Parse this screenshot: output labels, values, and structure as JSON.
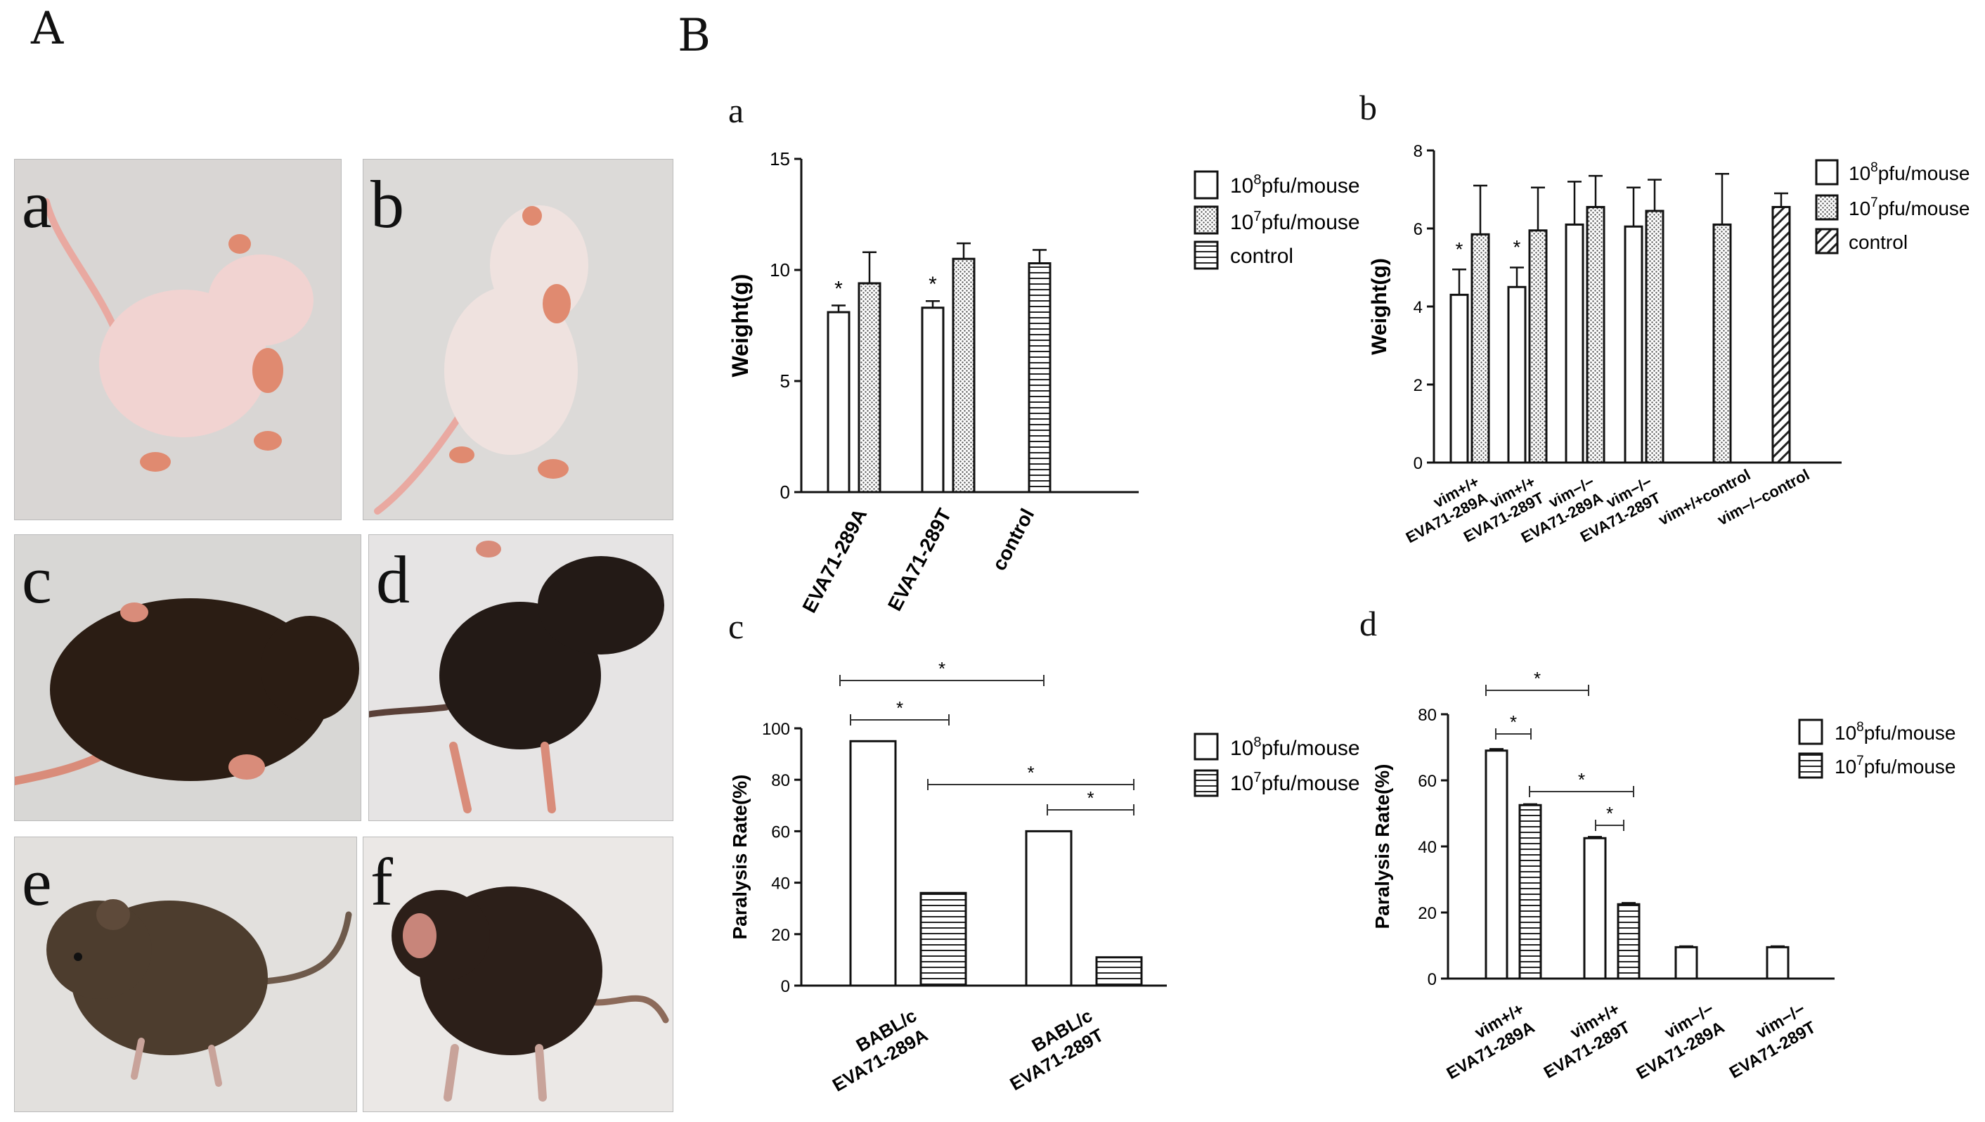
{
  "panel_A": {
    "label": "A",
    "photos": [
      {
        "label": "a",
        "bg": "#d9d6d4",
        "fur": "#f1d3d1"
      },
      {
        "label": "b",
        "bg": "#dcdad8",
        "fur": "#efe2df"
      },
      {
        "label": "c",
        "bg": "#d8d7d5",
        "fur": "#2b1d14"
      },
      {
        "label": "d",
        "bg": "#e6e4e4",
        "fur": "#231a16"
      },
      {
        "label": "e",
        "bg": "#e2e0dd",
        "fur": "#4d3d2e"
      },
      {
        "label": "f",
        "bg": "#ebe8e6",
        "fur": "#2c1f19"
      }
    ]
  },
  "panel_B": {
    "label": "B"
  },
  "legend_text": {
    "l8_base": "10",
    "l8_exp": "8",
    "l8_unit": "pfu/mouse",
    "l7_base": "10",
    "l7_exp": "7",
    "l7_unit": "pfu/mouse",
    "control": "control"
  },
  "chart_data": [
    {
      "id": "a",
      "label": "a",
      "type": "bar",
      "ylabel": "Weight(g)",
      "ylim": [
        0,
        15
      ],
      "yticks": [
        0,
        5,
        10,
        15
      ],
      "categories": [
        "EVA71-289A",
        "EVA71-289T",
        "control"
      ],
      "series": [
        {
          "key": "s8",
          "values": [
            8.1,
            8.3,
            null
          ],
          "errors": [
            0.3,
            0.3,
            null
          ]
        },
        {
          "key": "s7",
          "values": [
            9.4,
            10.5,
            null
          ],
          "errors": [
            1.4,
            0.7,
            null
          ]
        },
        {
          "key": "ctrl",
          "values": [
            null,
            null,
            10.3
          ],
          "errors": [
            null,
            null,
            0.6
          ]
        }
      ],
      "star": "*"
    },
    {
      "id": "b",
      "label": "b",
      "type": "bar",
      "ylabel": "Weight(g)",
      "ylim": [
        0,
        8
      ],
      "yticks": [
        0,
        2,
        4,
        6,
        8
      ],
      "categories": [
        "vim+/+ EVA71-289A",
        "vim+/+ EVA71-289T",
        "vim−/− EVA71-289A",
        "vim−/− EVA71-289T",
        "vim+/+control",
        "vim−/−control"
      ],
      "series": [
        {
          "key": "s8",
          "values": [
            4.3,
            4.5,
            6.1,
            6.05,
            null,
            null
          ],
          "errors": [
            0.65,
            0.5,
            1.1,
            1.0,
            null,
            null
          ]
        },
        {
          "key": "s7",
          "values": [
            5.85,
            5.95,
            6.55,
            6.45,
            6.1,
            null
          ],
          "errors": [
            1.25,
            1.1,
            0.8,
            0.8,
            1.3,
            null
          ]
        },
        {
          "key": "ctrl",
          "values": [
            null,
            null,
            null,
            null,
            null,
            6.55
          ],
          "errors": [
            null,
            null,
            null,
            null,
            null,
            0.35
          ]
        }
      ],
      "star": "*"
    },
    {
      "id": "c",
      "label": "c",
      "type": "bar",
      "ylabel": "Paralysis Rate(%)",
      "ylim": [
        0,
        100
      ],
      "yticks": [
        0,
        20,
        40,
        60,
        80,
        100
      ],
      "categories": [
        "BABL/c EVA71-289A",
        "BABL/c EVA71-289T"
      ],
      "series": [
        {
          "key": "s8",
          "values": [
            95,
            60
          ]
        },
        {
          "key": "s7",
          "values": [
            36,
            11
          ]
        }
      ],
      "star": "*"
    },
    {
      "id": "d",
      "label": "d",
      "type": "bar",
      "ylabel": "Paralysis Rate(%)",
      "ylim": [
        0,
        80
      ],
      "yticks": [
        0,
        20,
        40,
        60,
        80
      ],
      "categories": [
        "vim+/+ EVA71-289A",
        "vim+/+ EVA71-289T",
        "vim−/− EVA71-289A",
        "vim−/− EVA71-289T"
      ],
      "series": [
        {
          "key": "s8",
          "values": [
            69,
            42.5,
            9.5,
            9.5
          ],
          "errors": [
            0.5,
            0.4,
            0.3,
            0.3
          ]
        },
        {
          "key": "s7",
          "values": [
            52.5,
            22.5,
            null,
            null
          ],
          "errors": [
            0.3,
            0.4,
            null,
            null
          ]
        }
      ],
      "star": "*"
    }
  ]
}
